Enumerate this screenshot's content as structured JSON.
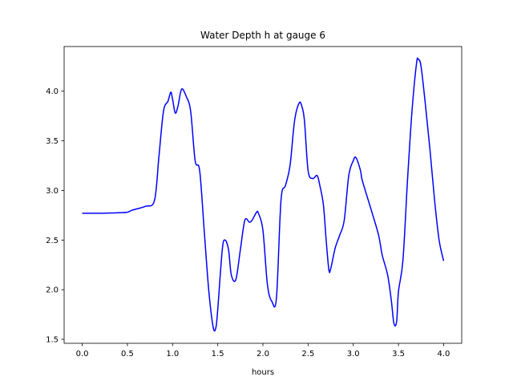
{
  "chart_data": {
    "type": "line",
    "title": "Water Depth h at gauge 6",
    "xlabel": "hours",
    "ylabel": "",
    "xlim": [
      -0.2,
      4.2
    ],
    "ylim": [
      1.46,
      4.45
    ],
    "xticks": [
      0.0,
      0.5,
      1.0,
      1.5,
      2.0,
      2.5,
      3.0,
      3.5,
      4.0
    ],
    "xtick_labels": [
      "0.0",
      "0.5",
      "1.0",
      "1.5",
      "2.0",
      "2.5",
      "3.0",
      "3.5",
      "4.0"
    ],
    "yticks": [
      1.5,
      2.0,
      2.5,
      3.0,
      3.5,
      4.0
    ],
    "ytick_labels": [
      "1.5",
      "2.0",
      "2.5",
      "3.0",
      "3.5",
      "4.0"
    ],
    "grid": false,
    "legend": "none",
    "series": [
      {
        "color": "#0000ff",
        "x": [
          0.0,
          0.2,
          0.4,
          0.5,
          0.55,
          0.7,
          0.8,
          0.85,
          0.9,
          0.95,
          0.98,
          1.0,
          1.03,
          1.06,
          1.1,
          1.15,
          1.2,
          1.25,
          1.3,
          1.35,
          1.4,
          1.45,
          1.48,
          1.5,
          1.55,
          1.58,
          1.62,
          1.65,
          1.7,
          1.75,
          1.8,
          1.85,
          1.88,
          1.93,
          1.95,
          2.0,
          2.05,
          2.1,
          2.15,
          2.2,
          2.25,
          2.3,
          2.35,
          2.4,
          2.43,
          2.46,
          2.5,
          2.55,
          2.6,
          2.63,
          2.67,
          2.7,
          2.73,
          2.75,
          2.8,
          2.85,
          2.9,
          2.95,
          3.0,
          3.03,
          3.08,
          3.1,
          3.2,
          3.28,
          3.32,
          3.38,
          3.42,
          3.45,
          3.48,
          3.5,
          3.55,
          3.6,
          3.65,
          3.7,
          3.72,
          3.75,
          3.8,
          3.85,
          3.9,
          3.95,
          4.0
        ],
        "y": [
          2.77,
          2.77,
          2.775,
          2.78,
          2.8,
          2.84,
          2.9,
          3.35,
          3.8,
          3.9,
          3.99,
          3.92,
          3.78,
          3.85,
          4.02,
          3.95,
          3.8,
          3.3,
          3.2,
          2.6,
          2.0,
          1.62,
          1.62,
          1.8,
          2.4,
          2.5,
          2.4,
          2.15,
          2.1,
          2.4,
          2.7,
          2.68,
          2.7,
          2.78,
          2.77,
          2.6,
          2.05,
          1.88,
          1.92,
          2.9,
          3.05,
          3.25,
          3.7,
          3.88,
          3.85,
          3.7,
          3.2,
          3.12,
          3.15,
          3.05,
          2.85,
          2.5,
          2.2,
          2.21,
          2.42,
          2.55,
          2.7,
          3.15,
          3.3,
          3.33,
          3.2,
          3.1,
          2.8,
          2.55,
          2.35,
          2.15,
          1.9,
          1.66,
          1.68,
          1.98,
          2.3,
          3.1,
          3.8,
          4.28,
          4.32,
          4.25,
          3.85,
          3.4,
          2.9,
          2.5,
          2.29
        ]
      }
    ]
  }
}
